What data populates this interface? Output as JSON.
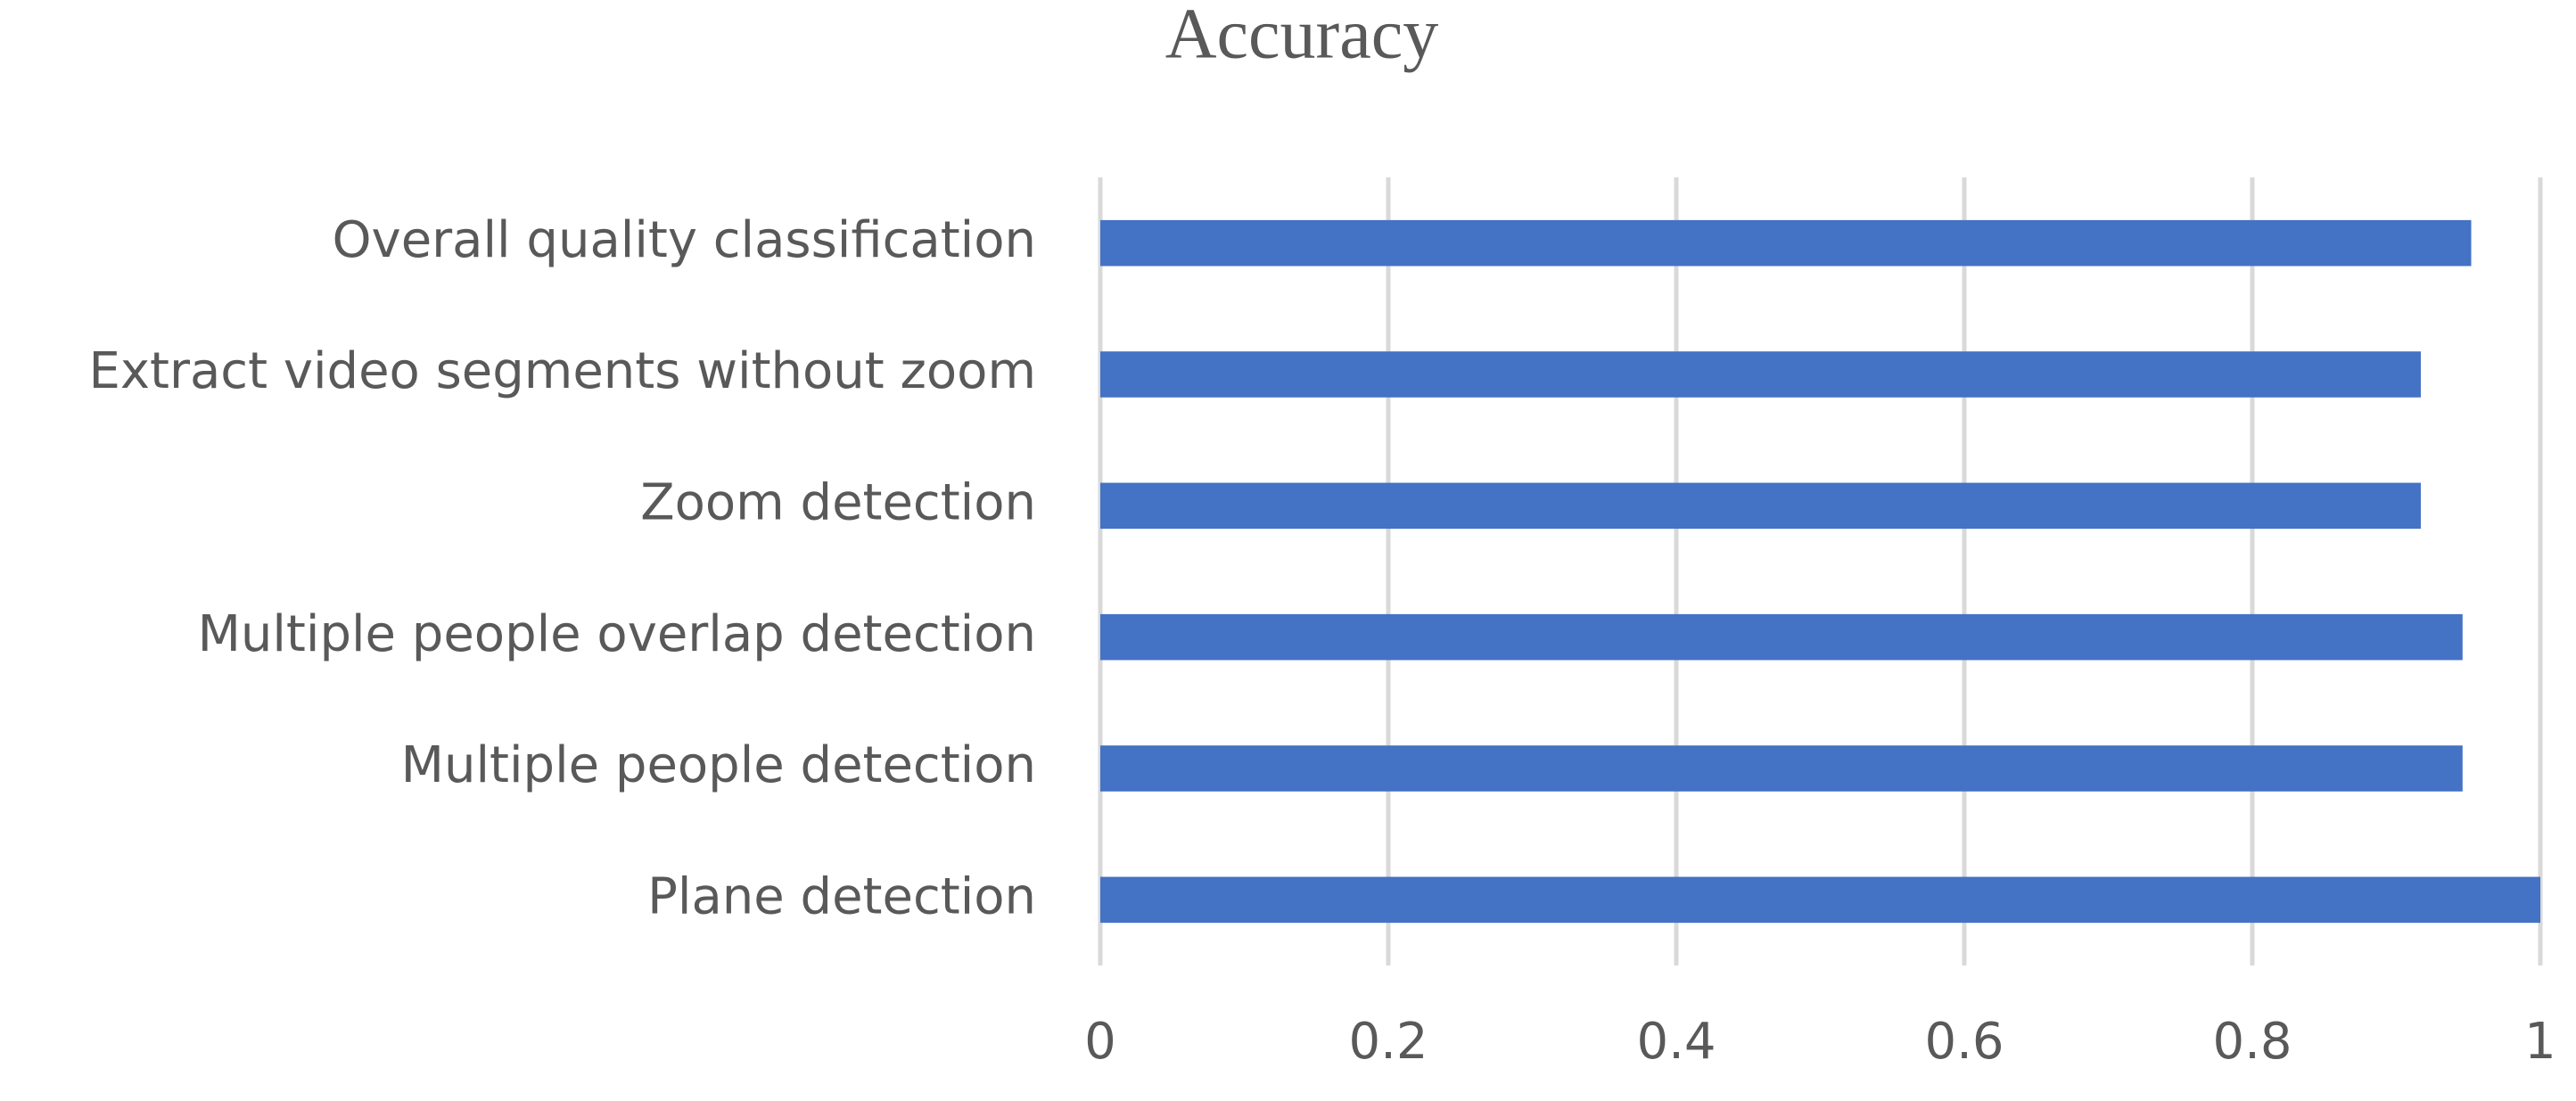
{
  "chart_data": {
    "type": "bar",
    "orientation": "horizontal",
    "title": "Accuracy",
    "categories": [
      "Overall quality classification",
      "Extract video segments without zoom",
      "Zoom detection",
      "Multiple people overlap detection",
      "Multiple people detection",
      "Plane detection"
    ],
    "values": [
      0.952,
      0.917,
      0.917,
      0.946,
      0.946,
      1.0
    ],
    "color": "#4472c4",
    "xlim": [
      0,
      1
    ],
    "xticks": [
      0,
      0.2,
      0.4,
      0.6,
      0.8,
      1
    ],
    "grid": true
  }
}
